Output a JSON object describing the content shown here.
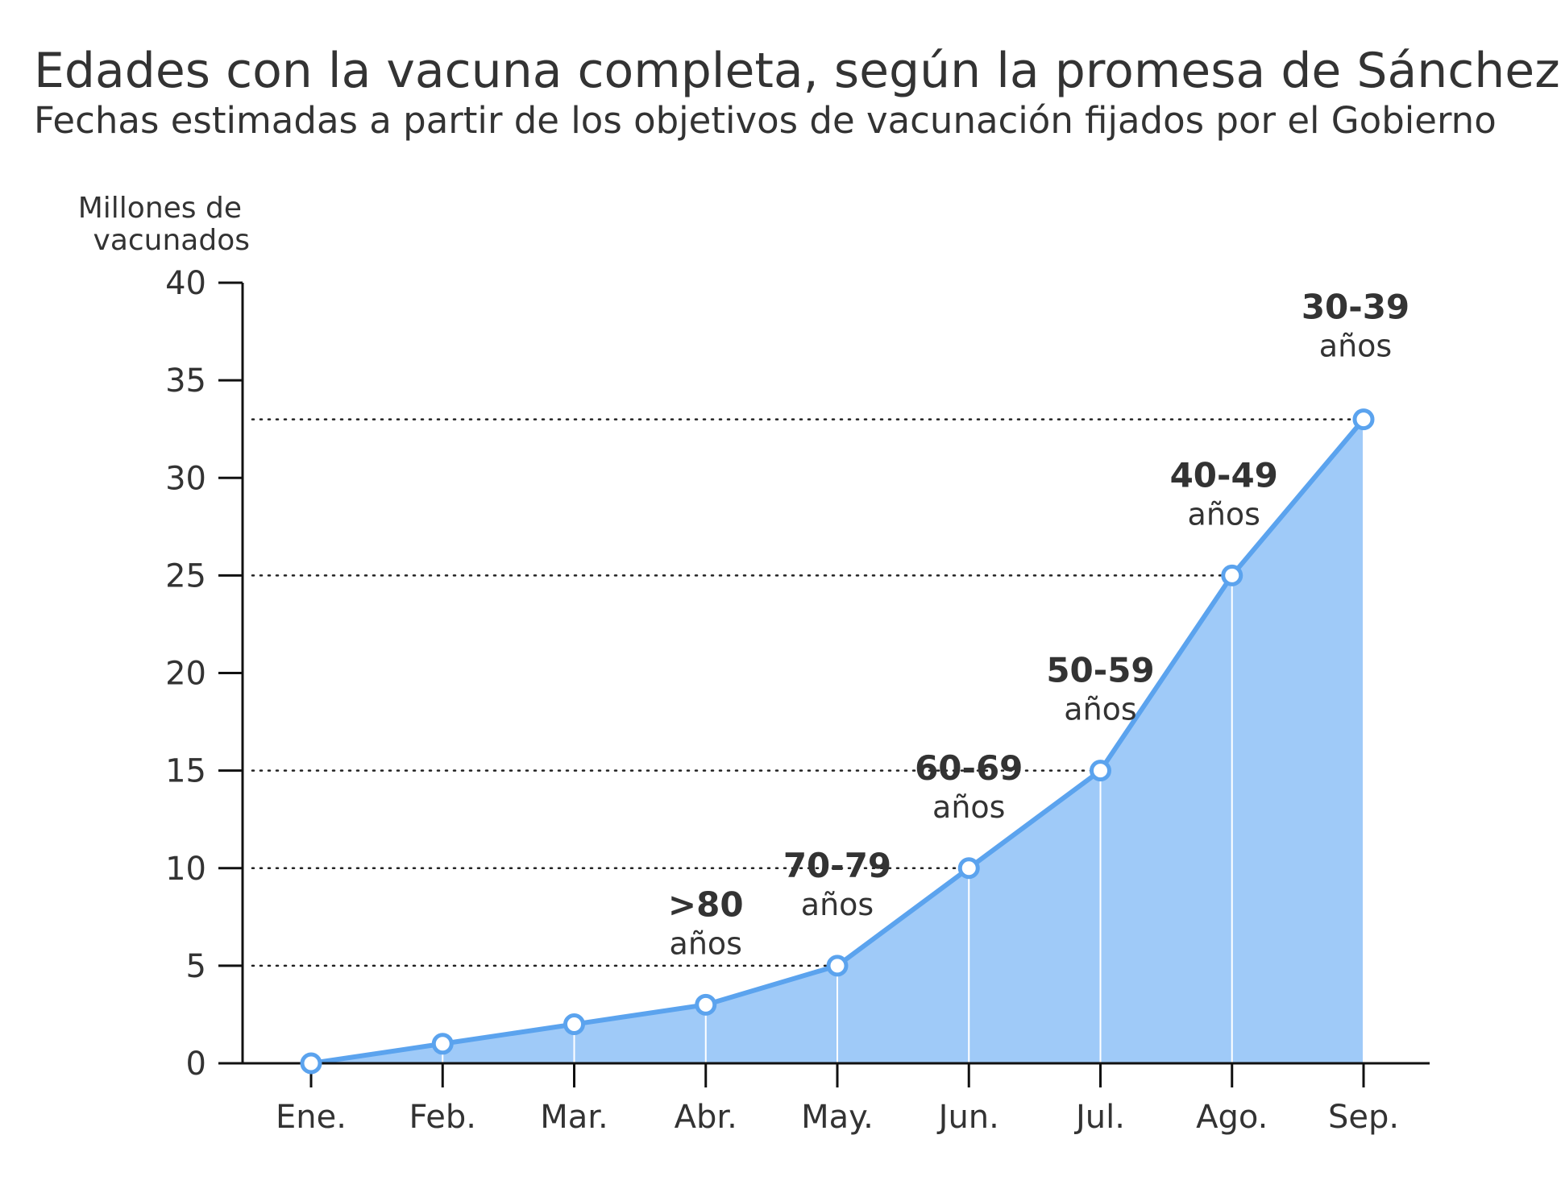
{
  "chart_data": {
    "type": "area",
    "title": "Edades con la vacuna completa, según la promesa de Sánchez",
    "subtitle": "Fechas estimadas a partir de los objetivos de vacunación fijados por el Gobierno",
    "ylabel": [
      "Millones de",
      "vacunados"
    ],
    "xlabel": "",
    "categories": [
      "Ene.",
      "Feb.",
      "Mar.",
      "Abr.",
      "May.",
      "Jun.",
      "Jul.",
      "Ago.",
      "Sep."
    ],
    "values": [
      0,
      1,
      2,
      3,
      5,
      10,
      15,
      25,
      33
    ],
    "ylim": [
      0,
      40
    ],
    "yticks": [
      "0",
      "5",
      "10",
      "15",
      "20",
      "25",
      "30",
      "35",
      "40"
    ],
    "grid": false,
    "annotations": [
      {
        "index": 3,
        "group": ">80",
        "unit": "años"
      },
      {
        "index": 4,
        "group": "70-79",
        "unit": "años"
      },
      {
        "index": 5,
        "group": "60-69",
        "unit": "años"
      },
      {
        "index": 6,
        "group": "50-59",
        "unit": "años"
      },
      {
        "index": 7,
        "group": "40-49",
        "unit": "años"
      },
      {
        "index": 8,
        "group": "30-39",
        "unit": "años"
      }
    ],
    "reference_lines": [
      5,
      10,
      15,
      25,
      33
    ],
    "colors": {
      "line": "#5ba3ee",
      "fill": "#9fcaf8",
      "text": "#333333",
      "axis": "#111111"
    }
  }
}
